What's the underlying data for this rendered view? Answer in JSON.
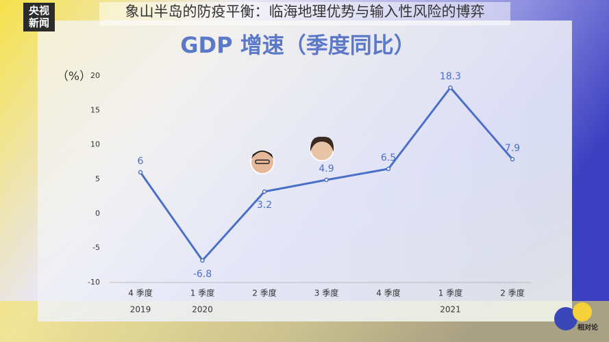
{
  "caption": "象山半岛的防疫平衡：临海地理优势与输入性风险的博弈",
  "logo": {
    "line1": "央视",
    "line2": "新闻"
  },
  "brand": "相对论",
  "chart_data": {
    "type": "line",
    "title": "GDP 增速（季度同比）",
    "y_label": "（%）",
    "categories": [
      "4 季度",
      "1 季度",
      "2 季度",
      "3 季度",
      "4 季度",
      "1 季度",
      "2 季度"
    ],
    "years": [
      "2019",
      "2020",
      null,
      null,
      null,
      "2021",
      null
    ],
    "series": [
      {
        "name": "GDP 增速",
        "color": "#4a6fc8",
        "values": [
          6,
          -6.8,
          3.2,
          4.9,
          6.5,
          18.3,
          7.9
        ]
      }
    ],
    "ylim": [
      -10,
      20
    ],
    "yticks": [
      -10,
      -5,
      0,
      5,
      10,
      15,
      20
    ],
    "grid": false
  }
}
